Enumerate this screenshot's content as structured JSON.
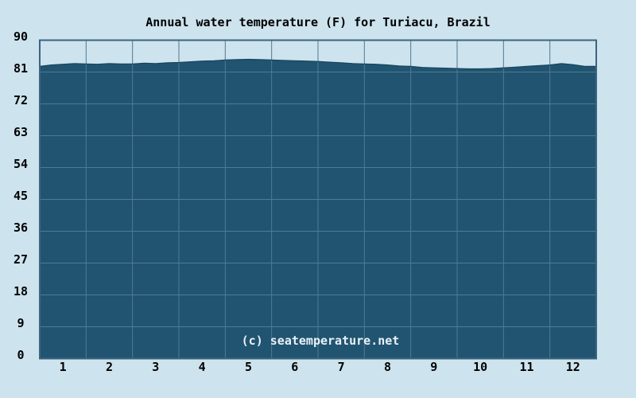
{
  "chart": {
    "title": "Annual water temperature (F) for Turiacu, Brazil",
    "watermark": "(c) seatemperature.net",
    "colors": {
      "background": "#cde3ee",
      "area_fill": "#215470",
      "area_edge": "#17455f",
      "gridline": "#507a94",
      "plot_border": "#3d647f",
      "label_text": "#000000",
      "watermark_text": "#e9f1f6"
    }
  },
  "chart_data": {
    "type": "area",
    "title": "Annual water temperature (F) for Turiacu, Brazil",
    "xlabel": "",
    "ylabel": "",
    "xlim": [
      0,
      12
    ],
    "ylim": [
      0,
      90
    ],
    "grid": true,
    "x_tick_labels": [
      "1",
      "2",
      "3",
      "4",
      "5",
      "6",
      "7",
      "8",
      "9",
      "10",
      "11",
      "12"
    ],
    "y_tick_labels": [
      90,
      81,
      72,
      63,
      54,
      45,
      36,
      27,
      18,
      9,
      0
    ],
    "series": [
      {
        "name": "Water temperature (F)",
        "x": [
          0,
          0.25,
          0.5,
          0.75,
          1,
          1.25,
          1.5,
          1.75,
          2,
          2.25,
          2.5,
          2.75,
          3,
          3.25,
          3.5,
          3.75,
          4,
          4.25,
          4.5,
          4.75,
          5,
          5.25,
          5.5,
          5.75,
          6,
          6.25,
          6.5,
          6.75,
          7,
          7.25,
          7.5,
          7.75,
          8,
          8.25,
          8.5,
          8.75,
          9,
          9.25,
          9.5,
          9.75,
          10,
          10.25,
          10.5,
          10.75,
          11,
          11.25,
          11.5,
          11.75,
          12
        ],
        "values": [
          82.6,
          83.0,
          83.2,
          83.4,
          83.3,
          83.2,
          83.4,
          83.3,
          83.3,
          83.5,
          83.4,
          83.6,
          83.7,
          83.9,
          84.1,
          84.2,
          84.4,
          84.5,
          84.6,
          84.5,
          84.4,
          84.3,
          84.2,
          84.1,
          84.0,
          83.8,
          83.6,
          83.4,
          83.3,
          83.2,
          83.0,
          82.7,
          82.6,
          82.3,
          82.2,
          82.1,
          82.0,
          81.9,
          81.9,
          82.0,
          82.2,
          82.4,
          82.6,
          82.8,
          83.0,
          83.4,
          83.1,
          82.6,
          82.6
        ]
      }
    ]
  }
}
